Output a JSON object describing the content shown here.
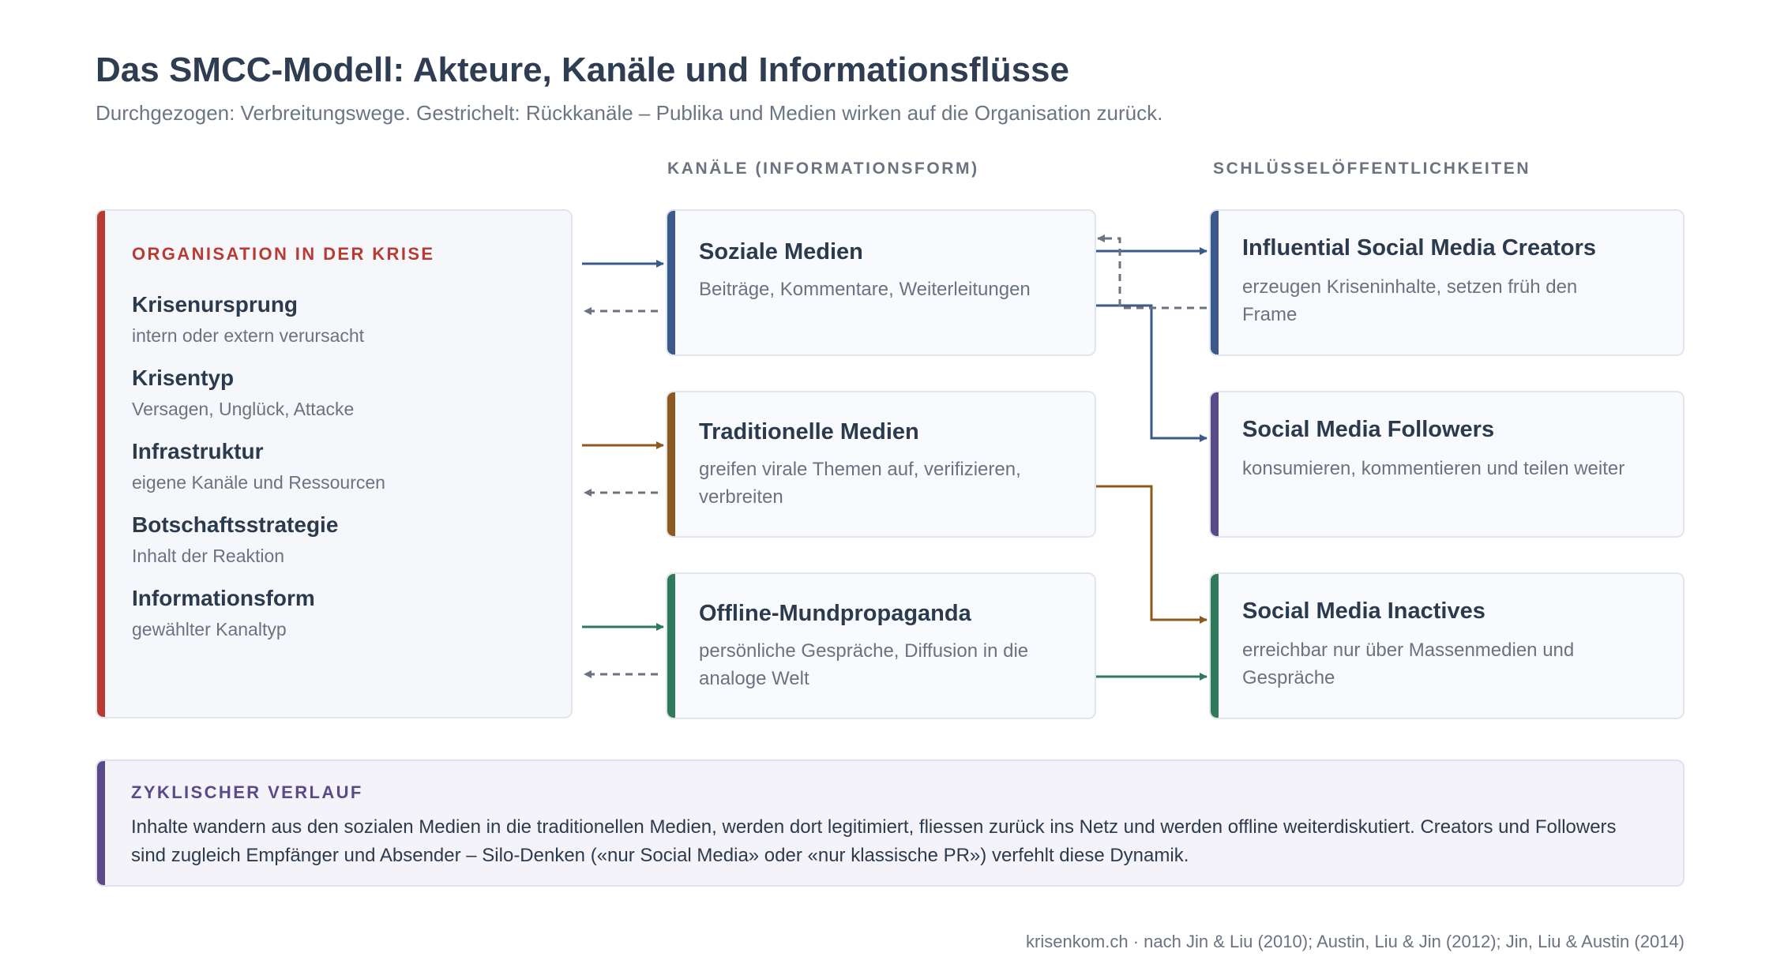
{
  "title": "Das SMCC-Modell: Akteure, Kanäle und Informationsflüsse",
  "subtitle": "Durchgezogen: Verbreitungswege. Gestrichelt: Rückkanäle – Publika und Medien wirken auf die Organisation zurück.",
  "column_headers": {
    "channels": "KANÄLE (INFORMATIONSFORM)",
    "publics": "SCHLÜSSELÖFFENTLICHKEITEN"
  },
  "organization": {
    "heading": "ORGANISATION IN DER KRISE",
    "items": [
      {
        "label": "Krisenursprung",
        "sub": "intern oder extern verursacht"
      },
      {
        "label": "Krisentyp",
        "sub": "Versagen, Unglück, Attacke"
      },
      {
        "label": "Infrastruktur",
        "sub": "eigene Kanäle und Ressourcen"
      },
      {
        "label": "Botschaftsstrategie",
        "sub": "Inhalt der Reaktion"
      },
      {
        "label": "Informationsform",
        "sub": "gewählter Kanaltyp"
      }
    ]
  },
  "channels": [
    {
      "name": "Soziale Medien",
      "desc": "Beiträge, Kommentare, Weiterleitungen",
      "color": "#3a5a8c"
    },
    {
      "name": "Traditionelle Medien",
      "desc": "greifen virale Themen auf, verifizieren, verbreiten",
      "color": "#8c5a1e"
    },
    {
      "name": "Offline-Mundpropaganda",
      "desc": "persönliche Gespräche, Diffusion in die analoge Welt",
      "color": "#2e7a5a"
    }
  ],
  "publics": [
    {
      "name": "Influential Social Media Creators",
      "desc": "erzeugen Kriseninhalte, setzen früh den Frame",
      "color": "#3a5a8c"
    },
    {
      "name": "Social Media Followers",
      "desc": "konsumieren, kommentieren und teilen weiter",
      "color": "#5b4a8a"
    },
    {
      "name": "Social Media Inactives",
      "desc": "erreichbar nur über Massenmedien und Gespräche",
      "color": "#2e7a5a"
    }
  ],
  "cycle": {
    "heading": "ZYKLISCHER VERLAUF",
    "text": "Inhalte wandern aus den sozialen Medien in die traditionellen Medien, werden dort legitimiert, fliessen zurück ins Netz und werden offline weiterdiskutiert. Creators und Followers sind zugleich Empfänger und Absender – Silo-Denken («nur Social Media» oder «nur klassische PR») verfehlt diese Dynamik."
  },
  "footer": "krisenkom.ch · nach Jin & Liu (2010); Austin, Liu & Jin (2012); Jin, Liu & Austin (2014)",
  "colors": {
    "organization": "#b83a33",
    "feedback": "#6b7280",
    "cycle": "#5b4a8a"
  }
}
